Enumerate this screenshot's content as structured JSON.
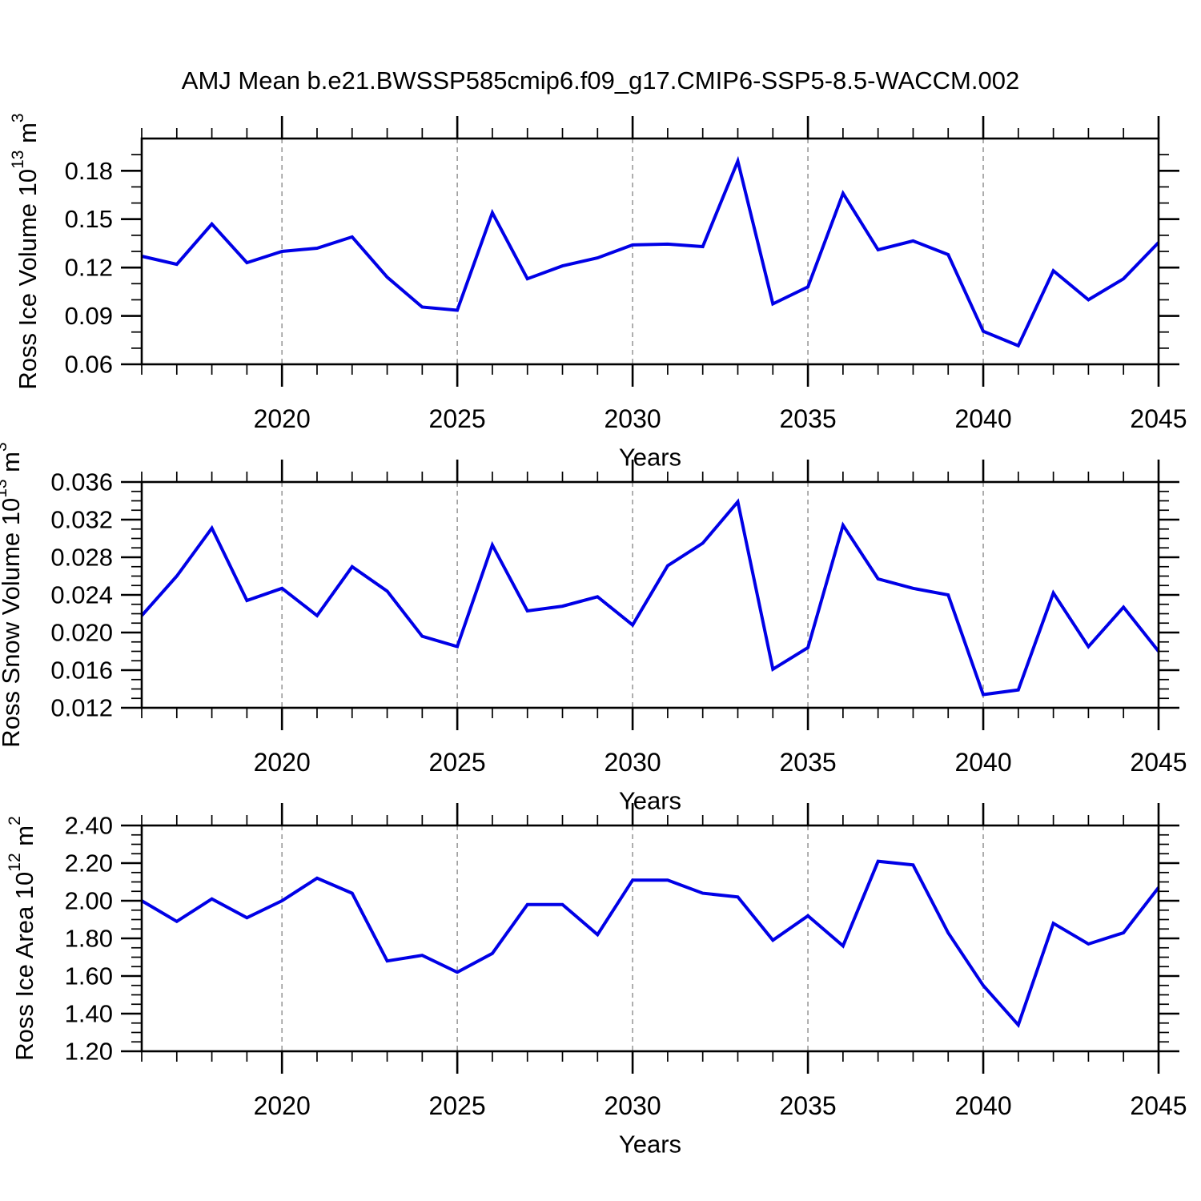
{
  "title": "AMJ Mean b.e21.BWSSP585cmip6.f09_g17.CMIP6-SSP5-8.5-WACCM.002",
  "figure": {
    "background": "#ffffff",
    "line_color": "#0000E6",
    "grid_color": "#A0A0A0",
    "axis_color": "#000000",
    "text_color": "#000000"
  },
  "chart_data": [
    {
      "type": "line",
      "name": "ross-ice-volume",
      "ylabel": "Ross Ice Volume 10¹³ m³",
      "ylabel_parts": [
        {
          "t": "Ross Ice Volume 10"
        },
        {
          "t": "13",
          "sup": true
        },
        {
          "t": " m"
        },
        {
          "t": "3",
          "sup": true
        }
      ],
      "xlabel": "Years",
      "xlim": [
        2016,
        2045
      ],
      "xticks": [
        2020,
        2025,
        2030,
        2035,
        2040,
        2045
      ],
      "x_gridlines": [
        2020,
        2025,
        2030,
        2035,
        2040
      ],
      "grid_style": "dashed-vertical",
      "ylim": [
        0.06,
        0.2
      ],
      "yticks": [
        0.06,
        0.09,
        0.12,
        0.15,
        0.18
      ],
      "ytick_labels": [
        "0.06",
        "0.09",
        "0.12",
        "0.15",
        "0.18"
      ],
      "y_minor_step": 0.01,
      "x": [
        2016,
        2017,
        2018,
        2019,
        2020,
        2021,
        2022,
        2023,
        2024,
        2025,
        2026,
        2027,
        2028,
        2029,
        2030,
        2031,
        2032,
        2033,
        2034,
        2035,
        2036,
        2037,
        2038,
        2039,
        2040,
        2041,
        2042,
        2043,
        2044,
        2045
      ],
      "values": [
        0.127,
        0.122,
        0.147,
        0.123,
        0.13,
        0.132,
        0.139,
        0.114,
        0.0955,
        0.0935,
        0.154,
        0.113,
        0.121,
        0.126,
        0.134,
        0.1345,
        0.133,
        0.186,
        0.0975,
        0.108,
        0.166,
        0.131,
        0.1365,
        0.128,
        0.0805,
        0.0715,
        0.118,
        0.1,
        0.113,
        0.1355
      ]
    },
    {
      "type": "line",
      "name": "ross-snow-volume",
      "ylabel": "Ross Snow Volume 10¹³ m³",
      "ylabel_parts": [
        {
          "t": "Ross Snow Volume 10"
        },
        {
          "t": "13",
          "sup": true
        },
        {
          "t": " m"
        },
        {
          "t": "3",
          "sup": true
        }
      ],
      "xlabel": "Years",
      "xlim": [
        2016,
        2045
      ],
      "xticks": [
        2020,
        2025,
        2030,
        2035,
        2040,
        2045
      ],
      "x_gridlines": [
        2020,
        2025,
        2030,
        2035,
        2040
      ],
      "grid_style": "dashed-vertical",
      "ylim": [
        0.012,
        0.036
      ],
      "yticks": [
        0.012,
        0.016,
        0.02,
        0.024,
        0.028,
        0.032,
        0.036
      ],
      "ytick_labels": [
        "0.012",
        "0.016",
        "0.020",
        "0.024",
        "0.028",
        "0.032",
        "0.036"
      ],
      "y_minor_step": 0.001,
      "x": [
        2016,
        2017,
        2018,
        2019,
        2020,
        2021,
        2022,
        2023,
        2024,
        2025,
        2026,
        2027,
        2028,
        2029,
        2030,
        2031,
        2032,
        2033,
        2034,
        2035,
        2036,
        2037,
        2038,
        2039,
        2040,
        2041,
        2042,
        2043,
        2044,
        2045
      ],
      "values": [
        0.0218,
        0.026,
        0.0311,
        0.0234,
        0.0247,
        0.0218,
        0.027,
        0.0244,
        0.0196,
        0.0185,
        0.0293,
        0.0223,
        0.0228,
        0.0238,
        0.0208,
        0.0271,
        0.0295,
        0.0339,
        0.0161,
        0.0184,
        0.0314,
        0.0257,
        0.0247,
        0.024,
        0.0134,
        0.0139,
        0.0242,
        0.0185,
        0.0227,
        0.018
      ]
    },
    {
      "type": "line",
      "name": "ross-ice-area",
      "ylabel": "Ross Ice Area 10¹² m²",
      "ylabel_parts": [
        {
          "t": "Ross Ice Area 10"
        },
        {
          "t": "12",
          "sup": true
        },
        {
          "t": " m"
        },
        {
          "t": "2",
          "sup": true
        }
      ],
      "xlabel": "Years",
      "xlim": [
        2016,
        2045
      ],
      "xticks": [
        2020,
        2025,
        2030,
        2035,
        2040,
        2045
      ],
      "x_gridlines": [
        2020,
        2025,
        2030,
        2035,
        2040
      ],
      "grid_style": "dashed-vertical",
      "ylim": [
        1.2,
        2.4
      ],
      "yticks": [
        1.2,
        1.4,
        1.6,
        1.8,
        2.0,
        2.2,
        2.4
      ],
      "ytick_labels": [
        "1.20",
        "1.40",
        "1.60",
        "1.80",
        "2.00",
        "2.20",
        "2.40"
      ],
      "y_minor_step": 0.05,
      "x": [
        2016,
        2017,
        2018,
        2019,
        2020,
        2021,
        2022,
        2023,
        2024,
        2025,
        2026,
        2027,
        2028,
        2029,
        2030,
        2031,
        2032,
        2033,
        2034,
        2035,
        2036,
        2037,
        2038,
        2039,
        2040,
        2041,
        2042,
        2043,
        2044,
        2045
      ],
      "values": [
        2.0,
        1.89,
        2.01,
        1.91,
        2.0,
        2.12,
        2.04,
        1.68,
        1.71,
        1.62,
        1.72,
        1.98,
        1.98,
        1.82,
        2.11,
        2.11,
        2.04,
        2.02,
        1.79,
        1.92,
        1.76,
        2.21,
        2.19,
        1.83,
        1.55,
        1.34,
        1.88,
        1.77,
        1.83,
        2.07
      ]
    }
  ]
}
